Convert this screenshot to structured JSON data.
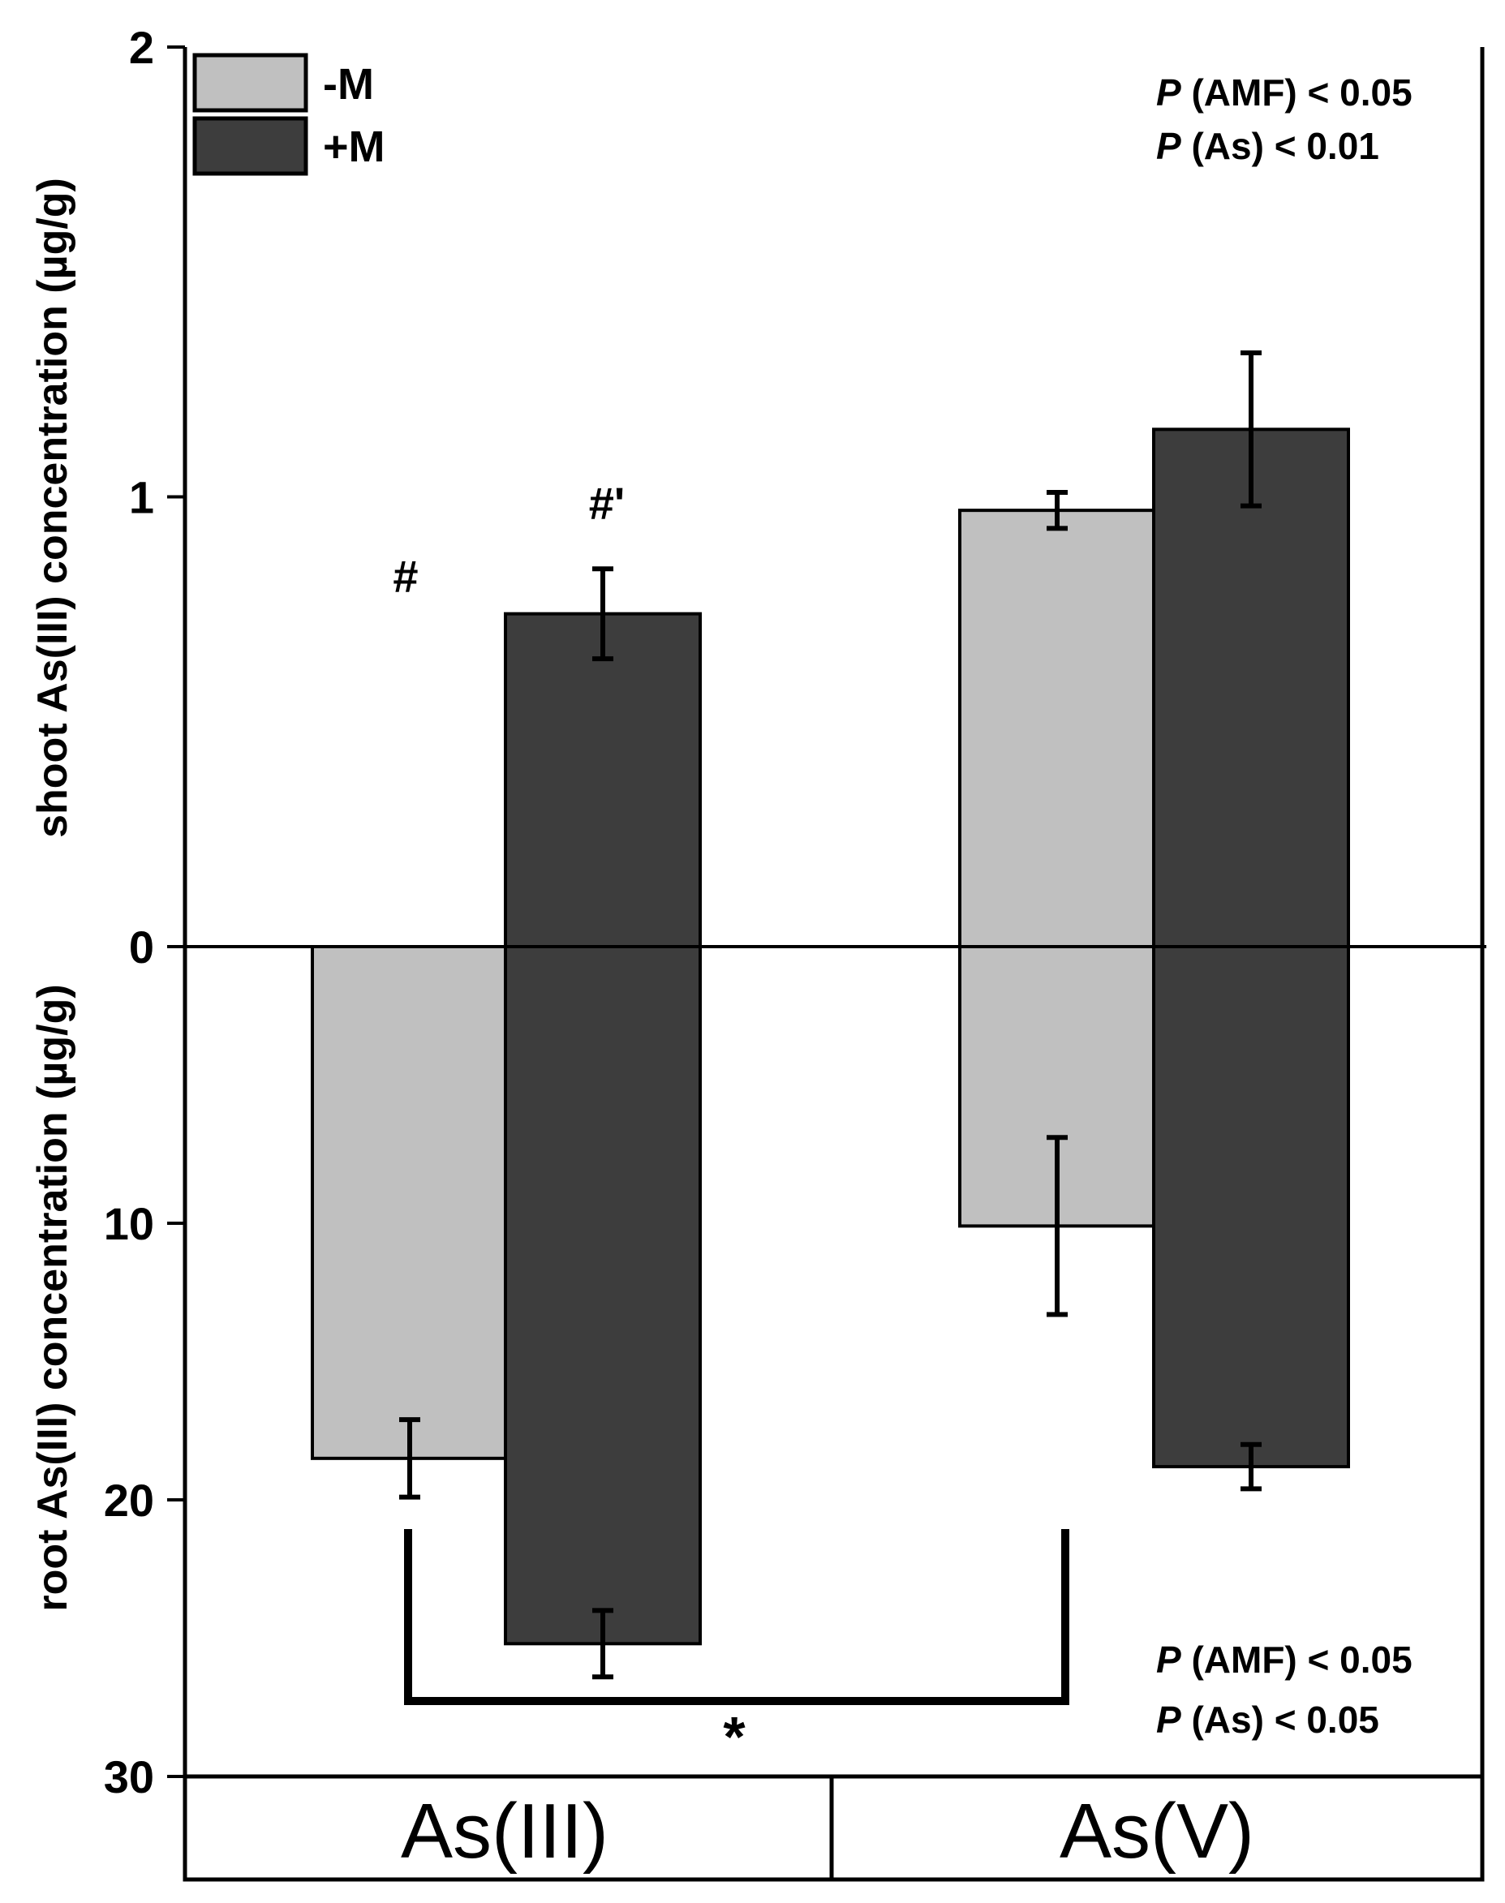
{
  "chart_data": {
    "type": "bar",
    "orientation": "mirrored",
    "categories": [
      "As(III)",
      "As(V)"
    ],
    "series": [
      {
        "name": "-M",
        "color": "#c0c0c0",
        "shoot": [
          0.0,
          0.97
        ],
        "shoot_err": [
          null,
          0.04
        ],
        "root": [
          18.5,
          10.1
        ],
        "root_err": [
          1.4,
          3.2
        ]
      },
      {
        "name": "+M",
        "color": "#3d3d3d",
        "shoot": [
          0.74,
          1.15
        ],
        "shoot_err": [
          0.1,
          0.17
        ],
        "root": [
          25.2,
          18.8
        ],
        "root_err": [
          1.2,
          0.8
        ]
      }
    ],
    "shoot_axis": {
      "label": "shoot As(III) concentration (µg/g)",
      "ylim": [
        0,
        2
      ],
      "ticks": [
        "0",
        "1",
        "2"
      ]
    },
    "root_axis": {
      "label": "root As(III) concentration (µg/g)",
      "ylim": [
        0,
        30
      ],
      "ticks": [
        "10",
        "20",
        "30"
      ]
    },
    "legend": {
      "placement": "top-left",
      "items": [
        "-M",
        "+M"
      ]
    },
    "annotations": {
      "hash_minus": "#",
      "hash_plus": "#'",
      "star": "*",
      "shoot_stats": [
        {
          "p": "P",
          "text": " (AMF) < 0.05"
        },
        {
          "p": "P",
          "text": " (As) < 0.01"
        }
      ],
      "root_stats": [
        {
          "p": "P",
          "text": " (AMF) < 0.05"
        },
        {
          "p": "P",
          "text": " (As) < 0.05"
        }
      ]
    }
  }
}
